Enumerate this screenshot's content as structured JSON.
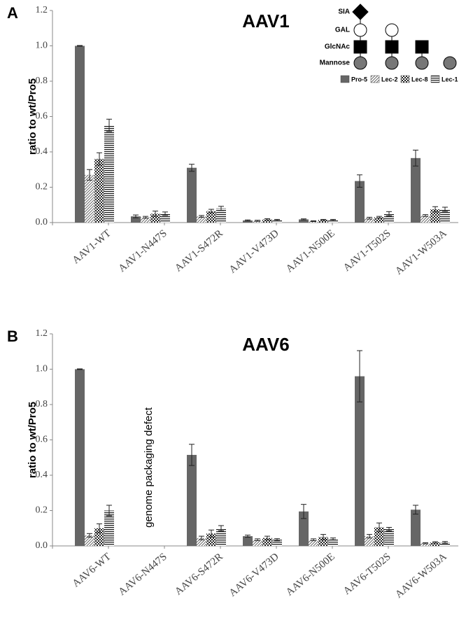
{
  "chart_data": [
    {
      "type": "bar",
      "panel": "A",
      "title": "AAV1",
      "y_label": "ratio to wt/Pro5",
      "categories": [
        "AAV1-WT",
        "AAV1-N447S",
        "AAV1-S472R",
        "AAV1-V473D",
        "AAV1-N500E",
        "AAV1-T502S",
        "AAV1-W503A"
      ],
      "series": [
        {
          "name": "Pro-5",
          "color": "#666666",
          "values": [
            1.0,
            0.035,
            0.31,
            0.012,
            0.018,
            0.235,
            0.365
          ],
          "errors": [
            0.002,
            0.008,
            0.02,
            0.003,
            0.003,
            0.035,
            0.045
          ]
        },
        {
          "name": "Lec-2",
          "color": "#555555",
          "values": [
            0.27,
            0.03,
            0.035,
            0.01,
            0.008,
            0.025,
            0.04
          ],
          "errors": [
            0.03,
            0.005,
            0.005,
            0.003,
            0.002,
            0.005,
            0.005
          ]
        },
        {
          "name": "Lec-8",
          "color": "#222222",
          "values": [
            0.36,
            0.05,
            0.065,
            0.018,
            0.015,
            0.03,
            0.075
          ],
          "errors": [
            0.035,
            0.015,
            0.01,
            0.004,
            0.003,
            0.005,
            0.015
          ]
        },
        {
          "name": "Lec-1",
          "color": "#222222",
          "values": [
            0.55,
            0.05,
            0.08,
            0.015,
            0.015,
            0.05,
            0.075
          ],
          "errors": [
            0.035,
            0.01,
            0.012,
            0.003,
            0.003,
            0.012,
            0.012
          ]
        }
      ],
      "annotations": [
        "SIA",
        "GAL",
        "GlcNAc",
        "Mannose"
      ],
      "ylim": [
        0,
        1.2
      ],
      "yticks": [
        {
          "value": 0,
          "label": "0.0"
        },
        0.2,
        0.4,
        0.6,
        0.8,
        {
          "value": 1,
          "label": "1.0"
        },
        1.2
      ]
    },
    {
      "type": "bar",
      "panel": "B",
      "title": "AAV6",
      "y_label": "ratio to wt/Pro5",
      "categories": [
        "AAV6-WT",
        "AAV6-N447S",
        "AAV6-S472R",
        "AAV6-V473D",
        "AAV6-N500E",
        "AAV6-T502S",
        "AAV6-W503A"
      ],
      "series": [
        {
          "name": "Pro-5",
          "color": "#666666",
          "values": [
            1.0,
            null,
            0.515,
            0.055,
            0.195,
            0.96,
            0.205
          ],
          "errors": [
            0.002,
            null,
            0.06,
            0.006,
            0.04,
            0.145,
            0.025
          ]
        },
        {
          "name": "Lec-2",
          "color": "#555555",
          "values": [
            0.06,
            null,
            0.045,
            0.035,
            0.035,
            0.055,
            0.015
          ],
          "errors": [
            0.01,
            null,
            0.01,
            0.005,
            0.005,
            0.01,
            0.003
          ]
        },
        {
          "name": "Lec-8",
          "color": "#222222",
          "values": [
            0.1,
            null,
            0.07,
            0.045,
            0.05,
            0.105,
            0.02
          ],
          "errors": [
            0.025,
            null,
            0.02,
            0.01,
            0.015,
            0.025,
            0.004
          ]
        },
        {
          "name": "Lec-1",
          "color": "#222222",
          "values": [
            0.2,
            null,
            0.1,
            0.035,
            0.04,
            0.095,
            0.02
          ],
          "errors": [
            0.03,
            null,
            0.015,
            0.006,
            0.005,
            0.01,
            0.005
          ]
        }
      ],
      "annotations": [
        "genome packaging defect"
      ],
      "ylim": [
        0,
        1.2
      ],
      "yticks": [
        {
          "value": 0,
          "label": "0.0"
        },
        0.2,
        0.4,
        0.6,
        0.8,
        {
          "value": 1,
          "label": "1.0"
        },
        1.2
      ]
    }
  ]
}
